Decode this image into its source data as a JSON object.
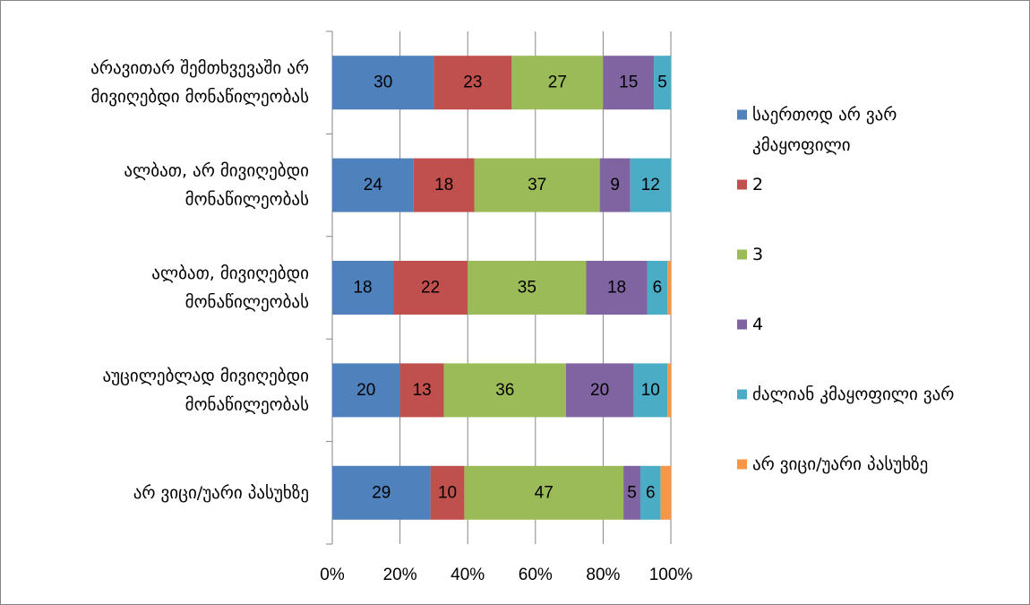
{
  "chart_data": {
    "type": "bar",
    "orientation": "horizontal",
    "stacked": "percent",
    "title": "",
    "xlabel": "",
    "ylabel": "",
    "xlim": [
      0,
      100
    ],
    "x_tick_labels": [
      "0%",
      "20%",
      "40%",
      "60%",
      "80%",
      "100%"
    ],
    "grid": true,
    "legend_position": "right",
    "categories": [
      [
        "არავითარ შემთხვევაში არ",
        "მივიღებდი მონაწილეობას"
      ],
      [
        "ალბათ, არ მივიღებდი",
        "მონაწილეობას"
      ],
      [
        "ალბათ, მივიღებდი",
        "მონაწილეობას"
      ],
      [
        "აუცილებლად მივიღებდი",
        "მონაწილეობას"
      ],
      [
        "არ ვიცი/უარი პასუხზე"
      ]
    ],
    "series": [
      {
        "name": [
          "საერთოდ არ ვარ",
          "კმაყოფილი"
        ],
        "color": "#4F81BD",
        "values": [
          30,
          24,
          18,
          20,
          29
        ]
      },
      {
        "name": [
          "2"
        ],
        "color": "#C0504D",
        "values": [
          23,
          18,
          22,
          13,
          10
        ]
      },
      {
        "name": [
          "3"
        ],
        "color": "#9BBB59",
        "values": [
          27,
          37,
          35,
          36,
          47
        ]
      },
      {
        "name": [
          "4"
        ],
        "color": "#8064A2",
        "values": [
          15,
          9,
          18,
          20,
          5
        ]
      },
      {
        "name": [
          "ძალიან კმაყოფილი ვარ"
        ],
        "color": "#4BACC6",
        "values": [
          5,
          12,
          6,
          10,
          6
        ]
      },
      {
        "name": [
          "არ ვიცი/უარი პასუხზე"
        ],
        "color": "#F79646",
        "values": [
          0,
          0,
          1,
          1,
          3
        ]
      }
    ],
    "data_label_min": 4
  }
}
